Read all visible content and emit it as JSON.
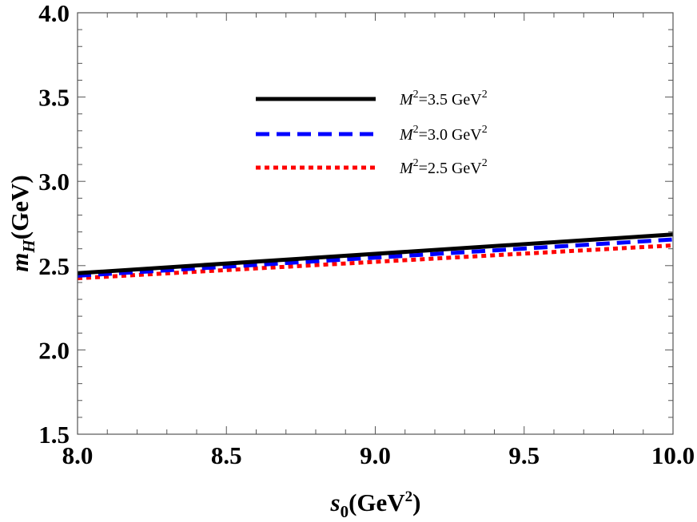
{
  "chart_data": {
    "type": "line",
    "xlabel": {
      "main": "s",
      "sub": "0",
      "rest": "(GeV",
      "sup": "2",
      "end": ")"
    },
    "ylabel": {
      "main": "m",
      "sub": "H",
      "rest": "(GeV)"
    },
    "xlim": [
      8.0,
      10.0
    ],
    "ylim": [
      1.5,
      4.0
    ],
    "xticks": [
      "8.0",
      "8.5",
      "9.0",
      "9.5",
      "10.0"
    ],
    "yticks": [
      "1.5",
      "2.0",
      "2.5",
      "3.0",
      "3.5",
      "4.0"
    ],
    "legend_position": "top-center",
    "series": [
      {
        "name": "M2=3.5 GeV2",
        "label": {
          "pre": "M",
          "sup1": "2",
          "mid": "=3.5 GeV",
          "sup2": "2"
        },
        "color": "#000000",
        "style": "solid",
        "x": [
          8.0,
          10.0
        ],
        "y": [
          2.455,
          2.685
        ]
      },
      {
        "name": "M2=3.0 GeV2",
        "label": {
          "pre": "M",
          "sup1": "2",
          "mid": "=3.0 GeV",
          "sup2": "2"
        },
        "color": "#0000ff",
        "style": "dashed",
        "x": [
          8.0,
          10.0
        ],
        "y": [
          2.44,
          2.655
        ]
      },
      {
        "name": "M2=2.5 GeV2",
        "label": {
          "pre": "M",
          "sup1": "2",
          "mid": "=2.5 GeV",
          "sup2": "2"
        },
        "color": "#ff0000",
        "style": "dotted",
        "x": [
          8.0,
          10.0
        ],
        "y": [
          2.425,
          2.62
        ]
      }
    ]
  }
}
